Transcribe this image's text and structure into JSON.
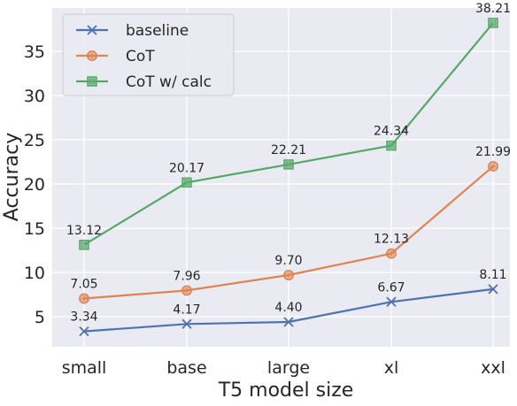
{
  "chart_data": {
    "type": "line",
    "categories": [
      "small",
      "base",
      "large",
      "xl",
      "xxl"
    ],
    "series": [
      {
        "name": "baseline",
        "values": [
          3.34,
          4.17,
          4.4,
          6.67,
          8.11
        ],
        "labels": [
          "3.34",
          "4.17",
          "4.40",
          "6.67",
          "8.11"
        ],
        "color": "#4c72b0",
        "marker": "x"
      },
      {
        "name": "CoT",
        "values": [
          7.05,
          7.96,
          9.7,
          12.13,
          21.99
        ],
        "labels": [
          "7.05",
          "7.96",
          "9.70",
          "12.13",
          "21.99"
        ],
        "color": "#dd8452",
        "marker": "circle"
      },
      {
        "name": "CoT w/ calc",
        "values": [
          13.12,
          20.17,
          22.21,
          24.34,
          38.21
        ],
        "labels": [
          "13.12",
          "20.17",
          "22.21",
          "24.34",
          "38.21"
        ],
        "color": "#55a868",
        "marker": "square"
      }
    ],
    "xlabel": "T5 model size",
    "ylabel": "Accuracy",
    "yticks": [
      5,
      10,
      15,
      20,
      25,
      30,
      35
    ],
    "ylim": [
      1.6,
      39.9
    ],
    "grid": true,
    "legend_position": "top-left",
    "background_color": "#eaeaf2",
    "grid_color": "#ffffff"
  }
}
